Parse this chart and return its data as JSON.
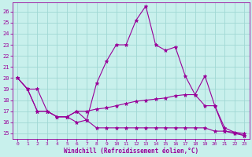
{
  "xlabel": "Windchill (Refroidissement éolien,°C)",
  "background_color": "#c8f0ec",
  "grid_color": "#a0d8d4",
  "line_color": "#990099",
  "xlim": [
    -0.5,
    23.5
  ],
  "ylim": [
    14.5,
    26.8
  ],
  "yticks": [
    15,
    16,
    17,
    18,
    19,
    20,
    21,
    22,
    23,
    24,
    25,
    26
  ],
  "xticks": [
    0,
    1,
    2,
    3,
    4,
    5,
    6,
    7,
    8,
    9,
    10,
    11,
    12,
    13,
    14,
    15,
    16,
    17,
    18,
    19,
    20,
    21,
    22,
    23
  ],
  "series": [
    {
      "x": [
        0,
        1,
        2,
        3,
        4,
        5,
        6,
        7,
        8,
        9,
        10,
        11,
        12,
        13,
        14,
        15,
        16,
        17,
        18,
        19,
        20,
        21,
        22,
        23
      ],
      "y": [
        20.0,
        19.0,
        19.0,
        17.0,
        16.5,
        16.5,
        17.0,
        16.2,
        19.5,
        21.5,
        23.0,
        23.0,
        25.2,
        26.5,
        23.0,
        22.5,
        22.8,
        20.2,
        18.5,
        20.2,
        17.5,
        15.2,
        15.1,
        14.8
      ]
    },
    {
      "x": [
        0,
        1,
        2,
        3,
        4,
        5,
        6,
        7,
        8,
        9,
        10,
        11,
        12,
        13,
        14,
        15,
        16,
        17,
        18,
        19,
        20,
        21,
        22,
        23
      ],
      "y": [
        20.0,
        19.0,
        17.0,
        17.0,
        16.5,
        16.5,
        17.0,
        17.0,
        17.2,
        17.3,
        17.5,
        17.7,
        17.9,
        18.0,
        18.1,
        18.2,
        18.4,
        18.5,
        18.5,
        17.5,
        17.5,
        15.5,
        15.1,
        15.0
      ]
    },
    {
      "x": [
        0,
        1,
        2,
        3,
        4,
        5,
        6,
        7,
        8,
        9,
        10,
        11,
        12,
        13,
        14,
        15,
        16,
        17,
        18,
        19,
        20,
        21,
        22,
        23
      ],
      "y": [
        20.0,
        19.0,
        17.0,
        17.0,
        16.5,
        16.5,
        16.0,
        16.2,
        15.5,
        15.5,
        15.5,
        15.5,
        15.5,
        15.5,
        15.5,
        15.5,
        15.5,
        15.5,
        15.5,
        15.5,
        15.2,
        15.2,
        15.0,
        14.8
      ]
    }
  ]
}
